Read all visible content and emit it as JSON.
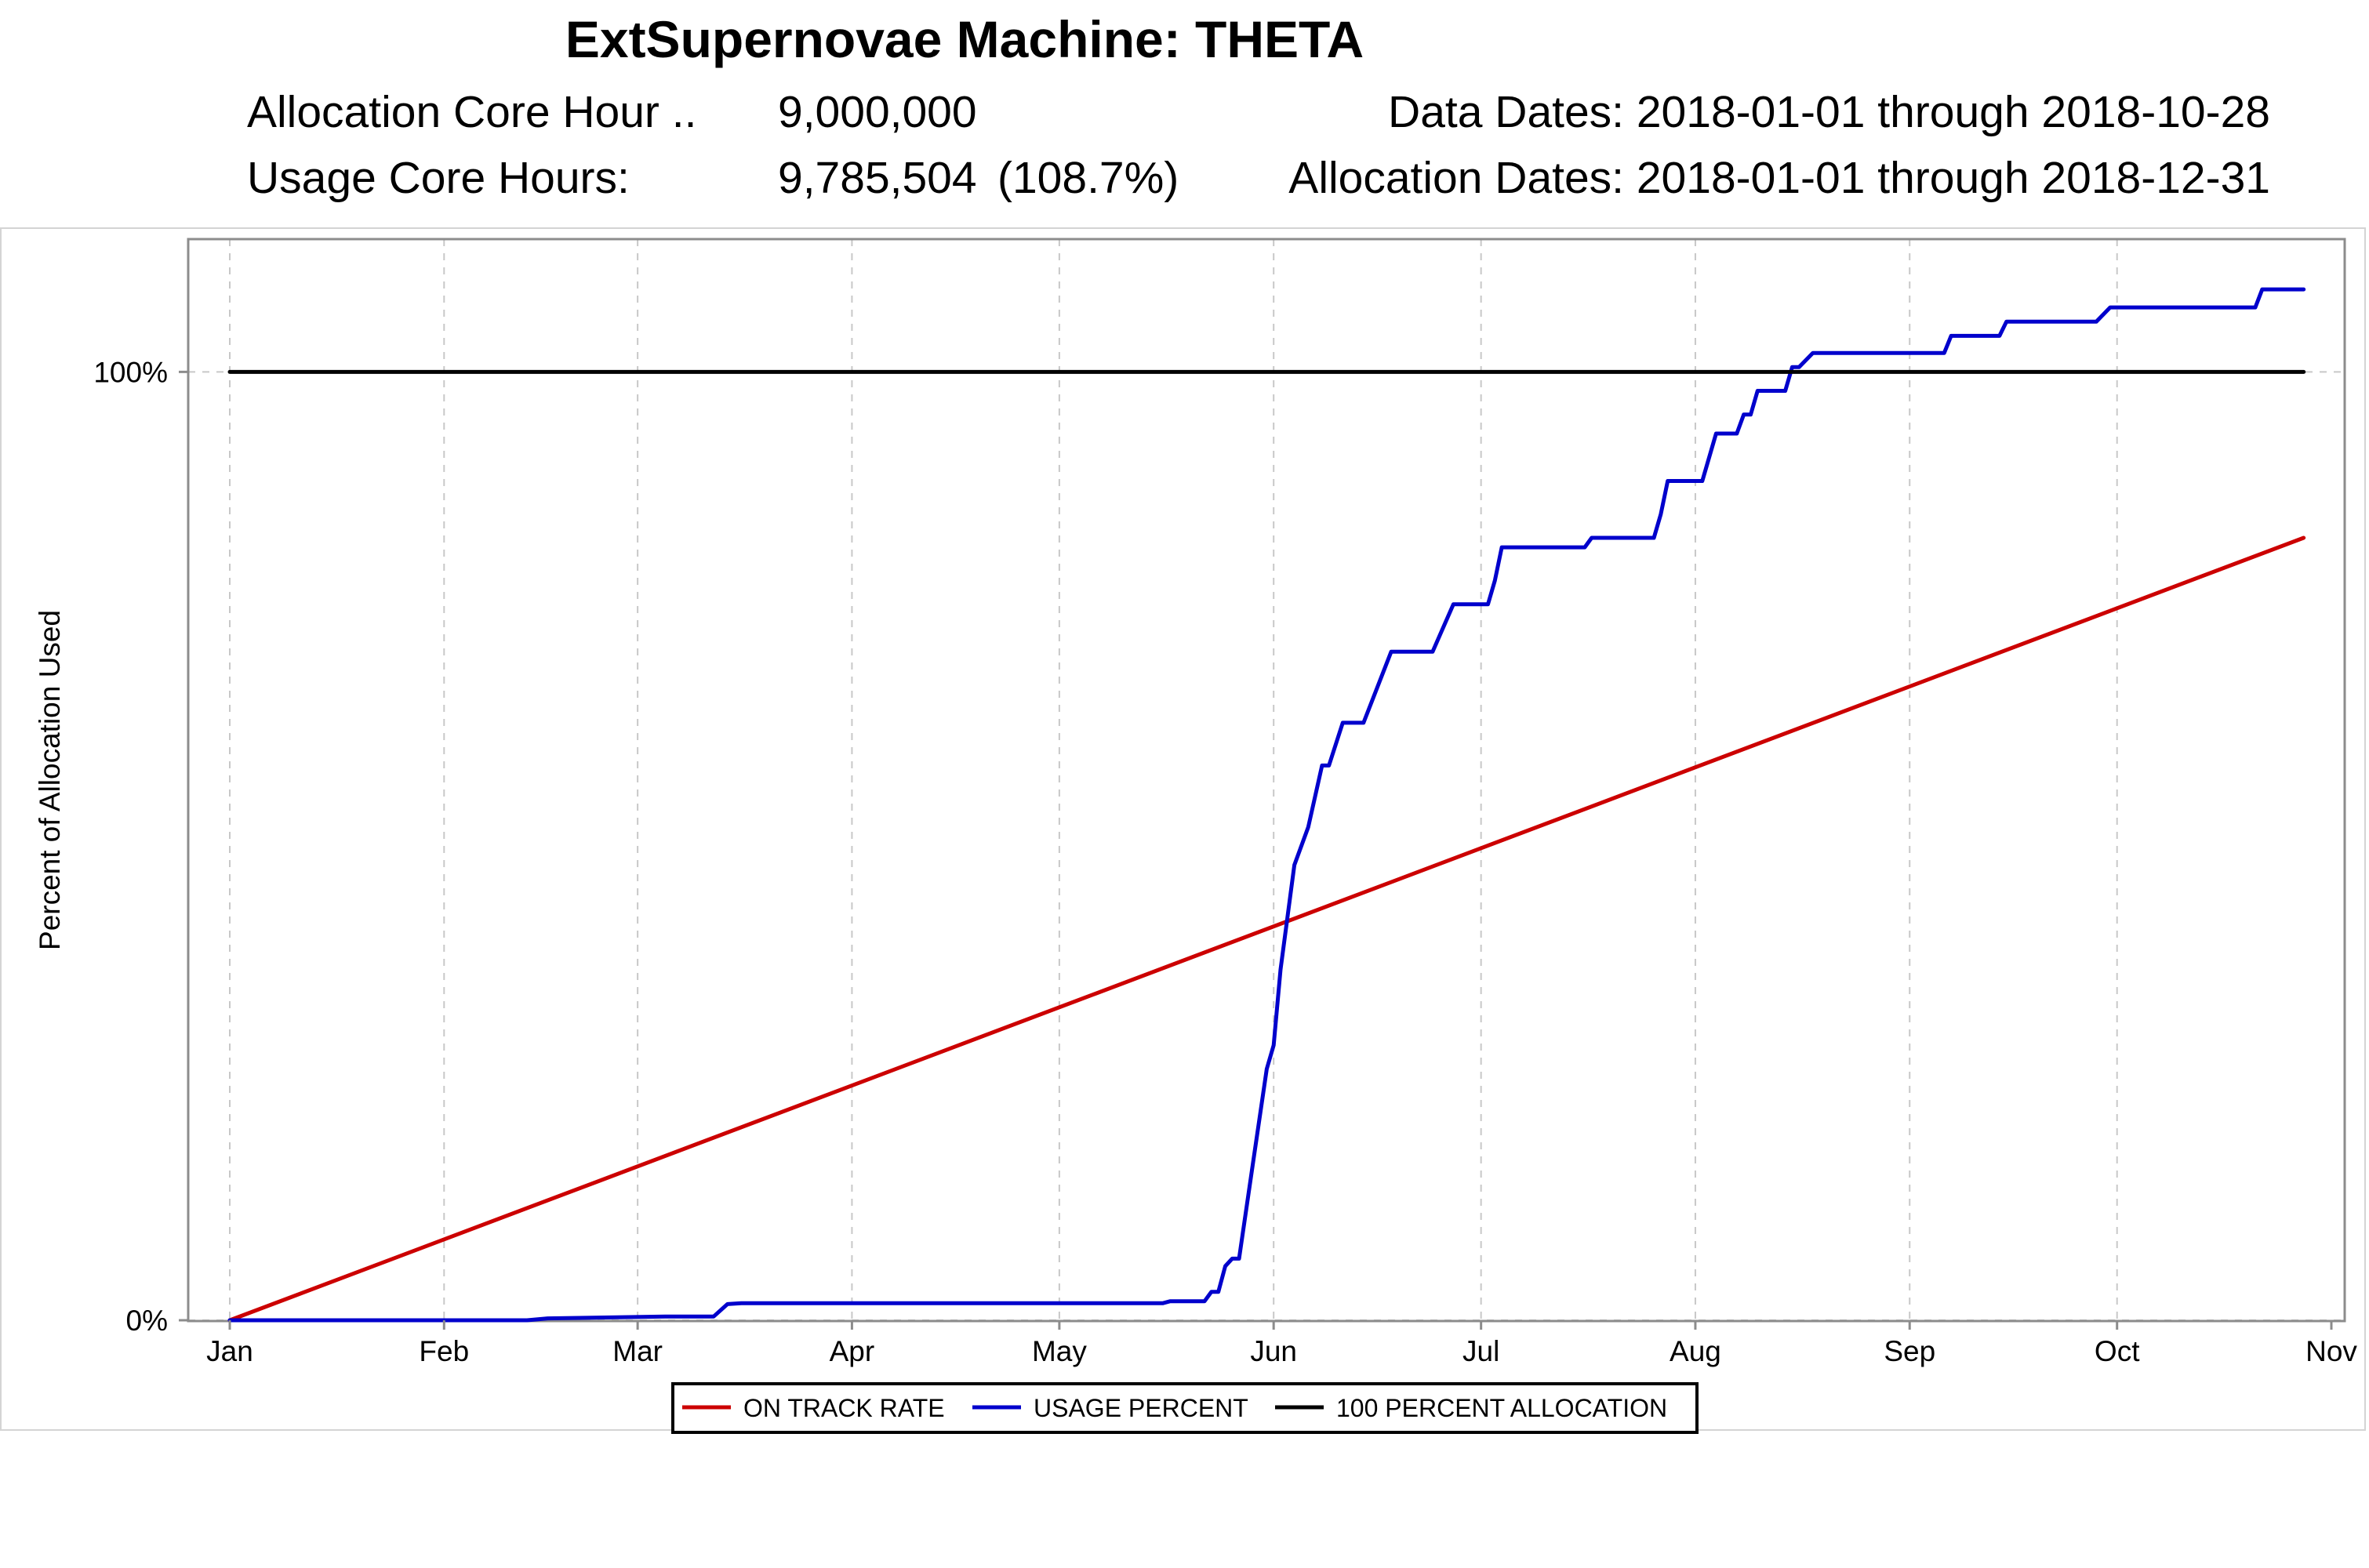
{
  "header": {
    "title": "ExtSupernovae  Machine: THETA",
    "allocation_label": "Allocation Core Hour ..",
    "allocation_value": "9,000,000",
    "usage_label": "Usage Core Hours:",
    "usage_value": "9,785,504",
    "usage_pct": "(108.7%)",
    "data_dates": "Data Dates: 2018-01-01 through 2018-10-28",
    "allocation_dates": "Allocation Dates: 2018-01-01 through 2018-12-31"
  },
  "chart_data": {
    "type": "line",
    "title": "ExtSupernovae  Machine: THETA",
    "ylabel": "Percent of Allocation Used",
    "xlabel": "",
    "x_ticks": [
      "Jan",
      "Feb",
      "Mar",
      "Apr",
      "May",
      "Jun",
      "Jul",
      "Aug",
      "Sep",
      "Oct",
      "Nov"
    ],
    "y_ticks": [
      {
        "value": 0,
        "label": "0%"
      },
      {
        "value": 100,
        "label": "100%"
      }
    ],
    "xlim": [
      "2018-01-01",
      "2018-11-01"
    ],
    "ylim": [
      0,
      114
    ],
    "grid": "vertical dashed",
    "legend_position": "bottom-center",
    "series": [
      {
        "name": "ON TRACK RATE",
        "color": "#cc0000",
        "points": [
          [
            "2018-01-01",
            0
          ],
          [
            "2018-10-28",
            82.5
          ]
        ]
      },
      {
        "name": "USAGE PERCENT",
        "color": "#0000cc",
        "points": [
          [
            "2018-01-01",
            0
          ],
          [
            "2018-02-13",
            0
          ],
          [
            "2018-02-16",
            0.2
          ],
          [
            "2018-02-25",
            0.3
          ],
          [
            "2018-03-05",
            0.4
          ],
          [
            "2018-03-12",
            0.4
          ],
          [
            "2018-03-14",
            1.7
          ],
          [
            "2018-03-16",
            1.8
          ],
          [
            "2018-05-16",
            1.8
          ],
          [
            "2018-05-17",
            2.0
          ],
          [
            "2018-05-22",
            2.0
          ],
          [
            "2018-05-23",
            3.0
          ],
          [
            "2018-05-24",
            3.0
          ],
          [
            "2018-05-25",
            5.7
          ],
          [
            "2018-05-26",
            6.5
          ],
          [
            "2018-05-27",
            6.5
          ],
          [
            "2018-05-29",
            16.5
          ],
          [
            "2018-05-31",
            26.5
          ],
          [
            "2018-06-01",
            29.0
          ],
          [
            "2018-06-02",
            37.0
          ],
          [
            "2018-06-04",
            48.0
          ],
          [
            "2018-06-06",
            52.0
          ],
          [
            "2018-06-08",
            58.5
          ],
          [
            "2018-06-09",
            58.5
          ],
          [
            "2018-06-11",
            63.0
          ],
          [
            "2018-06-14",
            63.0
          ],
          [
            "2018-06-18",
            70.5
          ],
          [
            "2018-06-24",
            70.5
          ],
          [
            "2018-06-27",
            75.5
          ],
          [
            "2018-07-02",
            75.5
          ],
          [
            "2018-07-03",
            78.0
          ],
          [
            "2018-07-04",
            81.5
          ],
          [
            "2018-07-05",
            81.5
          ],
          [
            "2018-07-16",
            81.5
          ],
          [
            "2018-07-17",
            82.5
          ],
          [
            "2018-07-26",
            82.5
          ],
          [
            "2018-07-27",
            85.0
          ],
          [
            "2018-07-28",
            88.5
          ],
          [
            "2018-08-02",
            88.5
          ],
          [
            "2018-08-04",
            93.5
          ],
          [
            "2018-08-07",
            93.5
          ],
          [
            "2018-08-08",
            95.5
          ],
          [
            "2018-08-09",
            95.5
          ],
          [
            "2018-08-10",
            98.0
          ],
          [
            "2018-08-14",
            98.0
          ],
          [
            "2018-08-15",
            100.5
          ],
          [
            "2018-08-16",
            100.5
          ],
          [
            "2018-08-18",
            102.0
          ],
          [
            "2018-09-06",
            102.0
          ],
          [
            "2018-09-07",
            103.8
          ],
          [
            "2018-09-14",
            103.8
          ],
          [
            "2018-09-15",
            105.3
          ],
          [
            "2018-09-28",
            105.3
          ],
          [
            "2018-09-30",
            106.8
          ],
          [
            "2018-10-21",
            106.8
          ],
          [
            "2018-10-22",
            108.7
          ],
          [
            "2018-10-28",
            108.7
          ]
        ]
      },
      {
        "name": "100 PERCENT ALLOCATION",
        "color": "#000000",
        "points": [
          [
            "2018-01-01",
            100
          ],
          [
            "2018-10-28",
            100
          ]
        ]
      }
    ]
  }
}
